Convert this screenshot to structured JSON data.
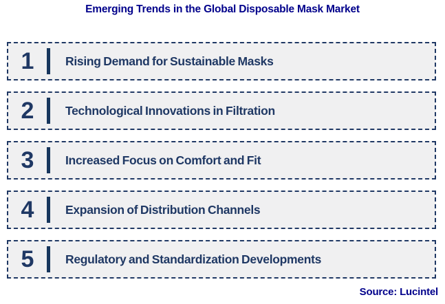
{
  "title": "Emerging Trends in the Global Disposable Mask Market",
  "source": "Source: Lucintel",
  "colors": {
    "title": "#00008B",
    "item_text": "#1F3864",
    "box_border": "#1F3864",
    "box_background": "#F0F0F1",
    "divider_bar": "#17365D"
  },
  "trends": [
    {
      "number": "1",
      "label": "Rising Demand for Sustainable Masks"
    },
    {
      "number": "2",
      "label": "Technological Innovations in Filtration"
    },
    {
      "number": "3",
      "label": "Increased Focus on Comfort and Fit"
    },
    {
      "number": "4",
      "label": "Expansion of Distribution Channels"
    },
    {
      "number": "5",
      "label": "Regulatory and Standardization Developments"
    }
  ]
}
